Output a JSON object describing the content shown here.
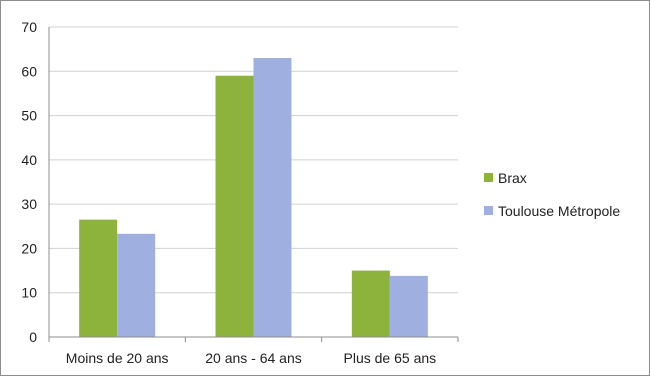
{
  "chart_data": {
    "type": "bar",
    "categories": [
      "Moins de 20 ans",
      "20 ans - 64 ans",
      "Plus de 65 ans"
    ],
    "series": [
      {
        "name": "Brax",
        "values": [
          26.5,
          59,
          15
        ],
        "color": "#8db33d"
      },
      {
        "name": "Toulouse Métropole",
        "values": [
          23.3,
          63,
          13.8
        ],
        "color": "#9fb0e0"
      }
    ],
    "title": "",
    "xlabel": "",
    "ylabel": "",
    "ylim": [
      0,
      70
    ],
    "yticks": [
      "0",
      "10",
      "20",
      "30",
      "40",
      "50",
      "60",
      "70"
    ],
    "grid": true,
    "legend_position": "right"
  }
}
